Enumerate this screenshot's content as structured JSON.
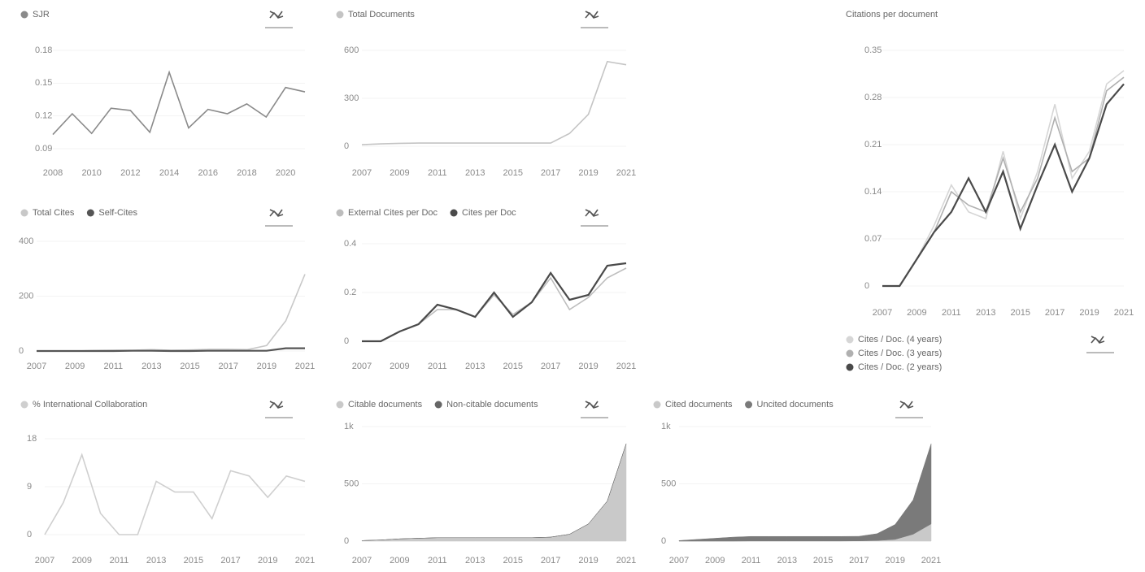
{
  "chart_data": [
    {
      "type": "line",
      "series": [
        {
          "name": "SJR",
          "color": "#8a8a8a",
          "values": [
            0.103,
            0.122,
            0.104,
            0.127,
            0.125,
            0.105,
            0.16,
            0.109,
            0.126,
            0.122,
            0.131,
            0.119,
            0.146,
            0.142
          ]
        }
      ],
      "x": [
        2008,
        2009,
        2010,
        2011,
        2012,
        2013,
        2014,
        2015,
        2016,
        2017,
        2018,
        2019,
        2020,
        2021
      ],
      "xlim": [
        2008,
        2021
      ],
      "xticks": [
        2008,
        2010,
        2012,
        2014,
        2016,
        2018,
        2020
      ],
      "ylim": [
        0.09,
        0.18
      ],
      "yticks": [
        0.09,
        0.12,
        0.15,
        0.18
      ]
    },
    {
      "type": "line",
      "series": [
        {
          "name": "Total Documents",
          "color": "#c4c4c4",
          "values": [
            10,
            15,
            18,
            20,
            20,
            20,
            20,
            20,
            20,
            20,
            20,
            80,
            200,
            530,
            510
          ]
        }
      ],
      "x": [
        2007,
        2008,
        2009,
        2010,
        2011,
        2012,
        2013,
        2014,
        2015,
        2016,
        2017,
        2018,
        2019,
        2020,
        2021
      ],
      "xlim": [
        2007,
        2021
      ],
      "xticks": [
        2007,
        2009,
        2011,
        2013,
        2015,
        2017,
        2019,
        2021
      ],
      "ylim": [
        0,
        600
      ],
      "yticks": [
        0,
        300,
        600
      ]
    },
    {
      "type": "line",
      "title": "Citations per document",
      "series": [
        {
          "name": "Cites / Doc. (4 years)",
          "color": "#d6d6d6",
          "values": [
            0,
            0,
            0.04,
            0.09,
            0.15,
            0.11,
            0.1,
            0.2,
            0.1,
            0.17,
            0.27,
            0.16,
            0.2,
            0.3,
            0.32
          ]
        },
        {
          "name": "Cites / Doc. (3 years)",
          "color": "#b0b0b0",
          "values": [
            0,
            0,
            0.04,
            0.08,
            0.14,
            0.12,
            0.11,
            0.19,
            0.11,
            0.16,
            0.25,
            0.17,
            0.19,
            0.29,
            0.31
          ]
        },
        {
          "name": "Cites / Doc. (2 years)",
          "color": "#4a4a4a",
          "values": [
            0,
            0,
            0.04,
            0.08,
            0.11,
            0.16,
            0.11,
            0.17,
            0.085,
            0.15,
            0.21,
            0.14,
            0.19,
            0.27,
            0.3
          ]
        }
      ],
      "x": [
        2007,
        2008,
        2009,
        2010,
        2011,
        2012,
        2013,
        2014,
        2015,
        2016,
        2017,
        2018,
        2019,
        2020,
        2021
      ],
      "xlim": [
        2007,
        2021
      ],
      "xticks": [
        2007,
        2009,
        2011,
        2013,
        2015,
        2017,
        2019,
        2021
      ],
      "ylim": [
        0,
        0.35
      ],
      "yticks": [
        0,
        0.07,
        0.14,
        0.21,
        0.28,
        0.35
      ],
      "legend": "bottom"
    },
    {
      "type": "line",
      "series": [
        {
          "name": "Total Cites",
          "color": "#c8c8c8",
          "values": [
            0,
            0,
            0,
            2,
            3,
            3,
            5,
            3,
            4,
            6,
            6,
            5,
            20,
            110,
            280
          ]
        },
        {
          "name": "Self-Cites",
          "color": "#555555",
          "values": [
            0,
            0,
            0,
            0,
            0,
            1,
            1,
            0,
            0,
            1,
            1,
            1,
            1,
            10,
            10
          ]
        }
      ],
      "x": [
        2007,
        2008,
        2009,
        2010,
        2011,
        2012,
        2013,
        2014,
        2015,
        2016,
        2017,
        2018,
        2019,
        2020,
        2021
      ],
      "xlim": [
        2007,
        2021
      ],
      "xticks": [
        2007,
        2009,
        2011,
        2013,
        2015,
        2017,
        2019,
        2021
      ],
      "ylim": [
        0,
        400
      ],
      "yticks": [
        0,
        200,
        400
      ]
    },
    {
      "type": "line",
      "series": [
        {
          "name": "External Cites per Doc",
          "color": "#bdbdbd",
          "values": [
            0,
            0,
            0.04,
            0.07,
            0.13,
            0.13,
            0.1,
            0.19,
            0.11,
            0.16,
            0.26,
            0.13,
            0.18,
            0.26,
            0.3
          ]
        },
        {
          "name": "Cites per Doc",
          "color": "#4a4a4a",
          "values": [
            0,
            0,
            0.04,
            0.07,
            0.15,
            0.13,
            0.1,
            0.2,
            0.1,
            0.16,
            0.28,
            0.17,
            0.19,
            0.31,
            0.32
          ]
        }
      ],
      "x": [
        2007,
        2008,
        2009,
        2010,
        2011,
        2012,
        2013,
        2014,
        2015,
        2016,
        2017,
        2018,
        2019,
        2020,
        2021
      ],
      "xlim": [
        2007,
        2021
      ],
      "xticks": [
        2007,
        2009,
        2011,
        2013,
        2015,
        2017,
        2019,
        2021
      ],
      "ylim": [
        0,
        0.4
      ],
      "yticks": [
        0,
        0.2,
        0.4
      ]
    },
    {
      "type": "line",
      "series": [
        {
          "name": "% International Collaboration",
          "color": "#cfcfcf",
          "values": [
            0,
            6,
            15,
            4,
            0,
            0,
            10,
            8,
            8,
            3,
            12,
            11,
            7,
            11,
            10
          ]
        }
      ],
      "x": [
        2007,
        2008,
        2009,
        2010,
        2011,
        2012,
        2013,
        2014,
        2015,
        2016,
        2017,
        2018,
        2019,
        2020,
        2021
      ],
      "xlim": [
        2007,
        2021
      ],
      "xticks": [
        2007,
        2009,
        2011,
        2013,
        2015,
        2017,
        2019,
        2021
      ],
      "ylim": [
        0,
        18
      ],
      "yticks": [
        0,
        9,
        18
      ]
    },
    {
      "type": "area",
      "series": [
        {
          "name": "Citable documents",
          "color": "#c9c9c9",
          "values": [
            5,
            10,
            20,
            25,
            30,
            30,
            30,
            30,
            30,
            30,
            35,
            60,
            150,
            350,
            850
          ]
        },
        {
          "name": "Non-citable documents",
          "color": "#666666",
          "values": [
            0,
            0,
            0,
            0,
            0,
            0,
            0,
            0,
            0,
            0,
            0,
            0,
            0,
            0,
            0
          ]
        }
      ],
      "x": [
        2007,
        2008,
        2009,
        2010,
        2011,
        2012,
        2013,
        2014,
        2015,
        2016,
        2017,
        2018,
        2019,
        2020,
        2021
      ],
      "xlim": [
        2007,
        2021
      ],
      "xticks": [
        2007,
        2009,
        2011,
        2013,
        2015,
        2017,
        2019,
        2021
      ],
      "ylim": [
        0,
        1000
      ],
      "yticks": [
        0,
        500,
        {
          "value": 1000,
          "label": "1k"
        }
      ]
    },
    {
      "type": "area",
      "series": [
        {
          "name": "Cited documents",
          "color": "#c9c9c9",
          "values": [
            0,
            0,
            0,
            0,
            1,
            1,
            1,
            1,
            1,
            1,
            2,
            5,
            15,
            60,
            150
          ]
        },
        {
          "name": "Uncited documents",
          "color": "#7a7a7a",
          "values": [
            5,
            15,
            25,
            35,
            40,
            40,
            40,
            40,
            40,
            40,
            40,
            60,
            130,
            300,
            700
          ]
        }
      ],
      "x": [
        2007,
        2008,
        2009,
        2010,
        2011,
        2012,
        2013,
        2014,
        2015,
        2016,
        2017,
        2018,
        2019,
        2020,
        2021
      ],
      "xlim": [
        2007,
        2021
      ],
      "xticks": [
        2007,
        2009,
        2011,
        2013,
        2015,
        2017,
        2019,
        2021
      ],
      "ylim": [
        0,
        1000
      ],
      "yticks": [
        0,
        500,
        {
          "value": 1000,
          "label": "1k"
        }
      ]
    }
  ]
}
